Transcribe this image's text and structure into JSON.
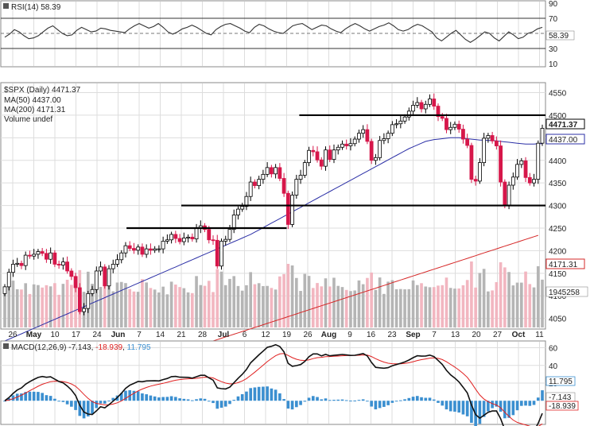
{
  "chart_data": [
    {
      "type": "line",
      "panel": "rsi",
      "legend": "RSI(14) 58.39",
      "ylim": [
        10,
        90
      ],
      "yticks": [
        90,
        70,
        50,
        30,
        10
      ],
      "reference_lines": [
        70,
        50,
        30
      ],
      "current_value_label": "58.39",
      "series": [
        {
          "name": "RSI(14)",
          "color": "#333333",
          "values": [
            45,
            49,
            55,
            52,
            47,
            43,
            44,
            47,
            52,
            57,
            60,
            55,
            50,
            47,
            48,
            54,
            58,
            55,
            52,
            53,
            57,
            56,
            54,
            53,
            52,
            51,
            56,
            60,
            63,
            60,
            57,
            59,
            63,
            58,
            52,
            49,
            52,
            56,
            58,
            61,
            58,
            54,
            50,
            48,
            55,
            59,
            62,
            63,
            60,
            57,
            53,
            51,
            58,
            62,
            60,
            56,
            53,
            51,
            50,
            55,
            60,
            62,
            63,
            59,
            55,
            58,
            61,
            60,
            56,
            53,
            51,
            56,
            60,
            63,
            60,
            56,
            53,
            56,
            59,
            61,
            64,
            60,
            55,
            53,
            55,
            59,
            62,
            60,
            56,
            52,
            44,
            40,
            45,
            50,
            54,
            48,
            42,
            38,
            42,
            47,
            52,
            50,
            44,
            40,
            46,
            52,
            48,
            43,
            45,
            50,
            52,
            56,
            58
          ]
        }
      ]
    },
    {
      "type": "candlestick",
      "panel": "price",
      "legend": [
        "$SPX (Daily) 4471.37",
        "MA(50) 4437.00",
        "MA(200) 4171.31",
        "Volume undef"
      ],
      "ylim": [
        4030,
        4565
      ],
      "yticks": [
        4550,
        4500,
        4450,
        4400,
        4350,
        4300,
        4250,
        4200,
        4150,
        4100,
        4050
      ],
      "price_labels": [
        "4471.37",
        "4437.00",
        "4171.31",
        "1945258"
      ],
      "horizontal_levels": [
        {
          "y": 4500,
          "from": "Jul 23",
          "to": "Oct 19"
        },
        {
          "y": 4300,
          "from": "Jun 14",
          "to": "Oct 19"
        },
        {
          "y": 4250,
          "from": "May 28",
          "to": "Jul 26"
        }
      ],
      "close": [
        4120,
        4152,
        4170,
        4172,
        4167,
        4190,
        4188,
        4192,
        4198,
        4194,
        4181,
        4195,
        4170,
        4168,
        4175,
        4155,
        4143,
        4118,
        4065,
        4072,
        4105,
        4114,
        4155,
        4164,
        4122,
        4160,
        4170,
        4180,
        4195,
        4211,
        4205,
        4201,
        4208,
        4192,
        4204,
        4201,
        4204,
        4204,
        4221,
        4224,
        4236,
        4227,
        4220,
        4228,
        4230,
        4226,
        4249,
        4255,
        4247,
        4224,
        4223,
        4166,
        4221,
        4225,
        4247,
        4279,
        4292,
        4298,
        4320,
        4352,
        4344,
        4358,
        4369,
        4384,
        4370,
        4384,
        4360,
        4327,
        4258,
        4323,
        4358,
        4367,
        4395,
        4422,
        4419,
        4401,
        4387,
        4423,
        4402,
        4423,
        4429,
        4436,
        4432,
        4437,
        4447,
        4460,
        4468,
        4442,
        4400,
        4406,
        4444,
        4448,
        4460,
        4479,
        4481,
        4487,
        4496,
        4509,
        4522,
        4528,
        4514,
        4524,
        4536,
        4520,
        4497,
        4493,
        4468,
        4473,
        4480,
        4469,
        4447,
        4433,
        4358,
        4354,
        4395,
        4449,
        4455,
        4443,
        4432,
        4352,
        4300,
        4345,
        4363,
        4391,
        4399,
        4362,
        4350,
        4358,
        4438,
        4471
      ],
      "open": [
        4105,
        4120,
        4152,
        4170,
        4172,
        4167,
        4190,
        4188,
        4192,
        4198,
        4194,
        4181,
        4195,
        4170,
        4168,
        4175,
        4155,
        4143,
        4118,
        4065,
        4072,
        4105,
        4114,
        4155,
        4164,
        4122,
        4160,
        4170,
        4180,
        4195,
        4211,
        4205,
        4201,
        4208,
        4192,
        4204,
        4201,
        4204,
        4204,
        4221,
        4224,
        4236,
        4227,
        4220,
        4228,
        4230,
        4226,
        4249,
        4255,
        4247,
        4224,
        4223,
        4166,
        4221,
        4225,
        4247,
        4279,
        4292,
        4298,
        4320,
        4352,
        4344,
        4358,
        4369,
        4384,
        4370,
        4384,
        4360,
        4327,
        4258,
        4323,
        4358,
        4367,
        4395,
        4422,
        4419,
        4401,
        4387,
        4423,
        4402,
        4423,
        4429,
        4436,
        4432,
        4437,
        4447,
        4460,
        4468,
        4442,
        4400,
        4406,
        4444,
        4448,
        4460,
        4479,
        4481,
        4487,
        4496,
        4509,
        4522,
        4528,
        4514,
        4524,
        4536,
        4520,
        4497,
        4493,
        4468,
        4473,
        4480,
        4469,
        4447,
        4433,
        4358,
        4354,
        4395,
        4449,
        4455,
        4443,
        4432,
        4352,
        4300,
        4345,
        4363,
        4391,
        4399,
        4362,
        4350,
        4358,
        4438
      ],
      "ma50": [
        4000,
        4004,
        4008,
        4012,
        4016,
        4020,
        4024,
        4028,
        4032,
        4036,
        4040,
        4044,
        4048,
        4052,
        4056,
        4060,
        4064,
        4068,
        4072,
        4076,
        4080,
        4084,
        4088,
        4092,
        4096,
        4100,
        4104,
        4108,
        4112,
        4116,
        4120,
        4124,
        4128,
        4132,
        4136,
        4140,
        4144,
        4148,
        4152,
        4156,
        4160,
        4164,
        4168,
        4172,
        4176,
        4180,
        4184,
        4188,
        4192,
        4196,
        4200,
        4204,
        4208,
        4212,
        4216,
        4220,
        4224,
        4228,
        4232,
        4236,
        4241,
        4246,
        4251,
        4256,
        4261,
        4266,
        4271,
        4276,
        4281,
        4286,
        4291,
        4296,
        4301,
        4306,
        4311,
        4316,
        4321,
        4326,
        4331,
        4336,
        4341,
        4346,
        4351,
        4356,
        4361,
        4366,
        4371,
        4376,
        4381,
        4386,
        4391,
        4396,
        4401,
        4406,
        4411,
        4416,
        4421,
        4426,
        4430,
        4434,
        4438,
        4442,
        4444,
        4446,
        4447,
        4448,
        4449,
        4450,
        4450,
        4450,
        4449,
        4448,
        4447,
        4446,
        4445,
        4445,
        4444,
        4444,
        4443,
        4442,
        4441,
        4440,
        4439,
        4438,
        4437,
        4436,
        4436,
        4436,
        4437,
        4437
      ],
      "ma200": [
        3850,
        3853,
        3856,
        3859,
        3862,
        3865,
        3868,
        3871,
        3874,
        3877,
        3880,
        3883,
        3886,
        3889,
        3892,
        3895,
        3898,
        3901,
        3904,
        3907,
        3910,
        3913,
        3916,
        3919,
        3922,
        3925,
        3928,
        3931,
        3934,
        3937,
        3940,
        3943,
        3946,
        3949,
        3952,
        3955,
        3958,
        3961,
        3964,
        3967,
        3970,
        3973,
        3976,
        3979,
        3982,
        3985,
        3988,
        3991,
        3994,
        3997,
        4000,
        4003,
        4006,
        4009,
        4012,
        4015,
        4018,
        4021,
        4024,
        4027,
        4030,
        4033,
        4036,
        4039,
        4042,
        4045,
        4048,
        4051,
        4054,
        4057,
        4060,
        4063,
        4066,
        4069,
        4072,
        4075,
        4078,
        4081,
        4084,
        4087,
        4090,
        4093,
        4096,
        4099,
        4102,
        4105,
        4108,
        4111,
        4114,
        4117,
        4120,
        4123,
        4126,
        4129,
        4132,
        4135,
        4138,
        4141,
        4144,
        4147,
        4150,
        4153,
        4156,
        4159,
        4162,
        4165,
        4168,
        4171,
        4174,
        4177,
        4180,
        4183,
        4186,
        4189,
        4192,
        4195,
        4198,
        4201,
        4204,
        4207,
        4210,
        4213,
        4216,
        4219,
        4222,
        4225,
        4228,
        4231,
        4234,
        4171
      ]
    },
    {
      "type": "line",
      "panel": "macd",
      "legend": {
        "prefix": "MACD(12,26,9)",
        "macd": "-7.143",
        "signal": "-18.939",
        "hist": "11.795"
      },
      "ylim": [
        -25,
        65
      ],
      "yticks": [
        60,
        40,
        20
      ],
      "value_labels": [
        "11.795",
        "-7.143",
        "-18.939"
      ],
      "colors": {
        "macd": "#111111",
        "signal": "#e02020",
        "hist": "#3b8fd0"
      }
    }
  ],
  "x_axis_labels": [
    {
      "label": "26",
      "bold": false
    },
    {
      "label": "May",
      "bold": true
    },
    {
      "label": "10",
      "bold": false
    },
    {
      "label": "17",
      "bold": false
    },
    {
      "label": "24",
      "bold": false
    },
    {
      "label": "Jun",
      "bold": true
    },
    {
      "label": "7",
      "bold": false
    },
    {
      "label": "14",
      "bold": false
    },
    {
      "label": "21",
      "bold": false
    },
    {
      "label": "28",
      "bold": false
    },
    {
      "label": "Jul",
      "bold": true
    },
    {
      "label": "6",
      "bold": false
    },
    {
      "label": "12",
      "bold": false
    },
    {
      "label": "19",
      "bold": false
    },
    {
      "label": "26",
      "bold": false
    },
    {
      "label": "Aug",
      "bold": true
    },
    {
      "label": "9",
      "bold": false
    },
    {
      "label": "16",
      "bold": false
    },
    {
      "label": "23",
      "bold": false
    },
    {
      "label": "Sep",
      "bold": true
    },
    {
      "label": "7",
      "bold": false
    },
    {
      "label": "13",
      "bold": false
    },
    {
      "label": "20",
      "bold": false
    },
    {
      "label": "27",
      "bold": false
    },
    {
      "label": "Oct",
      "bold": true
    },
    {
      "label": "11",
      "bold": false
    }
  ],
  "colors": {
    "up": "#ffffff",
    "down": "#d6174a",
    "grid": "#dddddd",
    "ma50": "#2b2fa6",
    "ma200": "#d62828",
    "vol_up": "#b5b5b5",
    "vol_down": "#f2b6c0",
    "ref": "#000000"
  }
}
